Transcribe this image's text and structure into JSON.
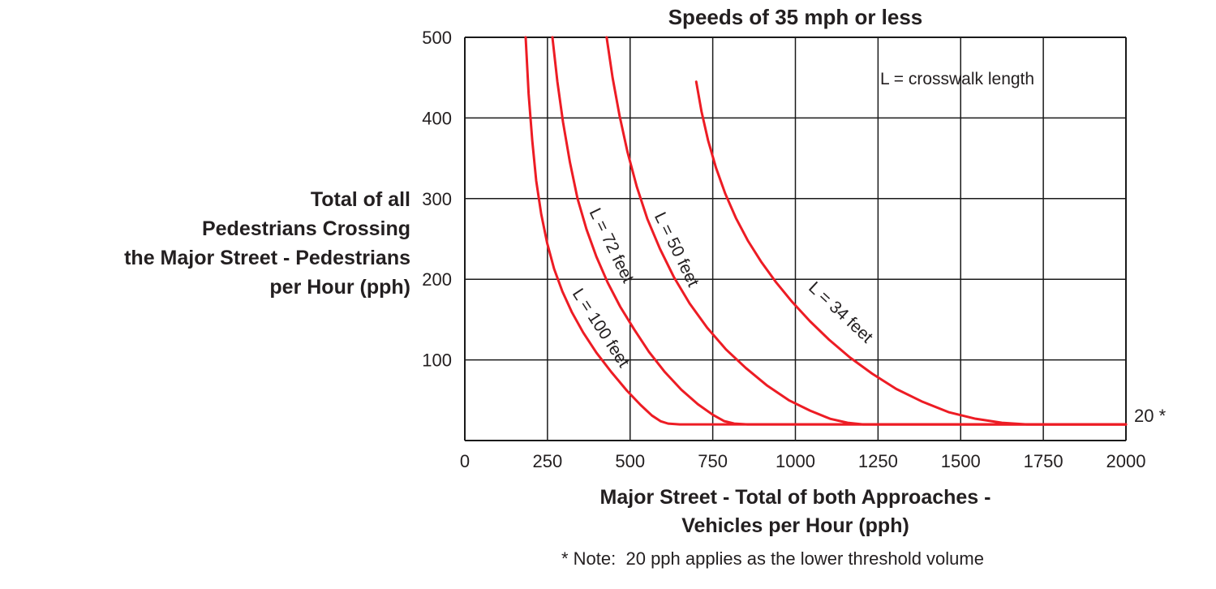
{
  "title": "Speeds of 35 mph or less",
  "legend_note": "L = crosswalk length",
  "threshold_label": "20 *",
  "footnote": "* Note:  20 pph applies as the lower threshold volume",
  "y_axis_label_lines": [
    "Total of all",
    "Pedestrians Crossing",
    "the Major Street - Pedestrians",
    "per Hour (pph)"
  ],
  "x_axis_label_lines": [
    "Major Street - Total of both Approaches -",
    "Vehicles per Hour (pph)"
  ],
  "chart_data": {
    "type": "line",
    "title": "Speeds of 35 mph or less",
    "xlabel": "Major Street - Total of both Approaches - Vehicles per Hour (pph)",
    "ylabel": "Total of all Pedestrians Crossing the Major Street - Pedestrians per Hour (pph)",
    "xlim": [
      0,
      2000
    ],
    "ylim": [
      0,
      500
    ],
    "x_ticks": [
      0,
      250,
      500,
      750,
      1000,
      1250,
      1500,
      1750,
      2000
    ],
    "y_ticks": [
      100,
      200,
      300,
      400,
      500
    ],
    "grid": true,
    "line_color": "#ed1c24",
    "axis_color": "#1a1a1a",
    "lower_threshold_pph": 20,
    "annotation": "L = crosswalk length",
    "series": [
      {
        "name": "L = 100 feet",
        "label_anchor": {
          "x": 398,
          "y": 136,
          "angle": 57
        },
        "points": [
          [
            184,
            500
          ],
          [
            193,
            430
          ],
          [
            204,
            372
          ],
          [
            216,
            322
          ],
          [
            231,
            281
          ],
          [
            249,
            245
          ],
          [
            270,
            213
          ],
          [
            295,
            185
          ],
          [
            324,
            159
          ],
          [
            358,
            134
          ],
          [
            398,
            109
          ],
          [
            443,
            85
          ],
          [
            490,
            62
          ],
          [
            532,
            44
          ],
          [
            566,
            31
          ],
          [
            592,
            24
          ],
          [
            615,
            21
          ],
          [
            650,
            20
          ],
          [
            2000,
            20
          ]
        ]
      },
      {
        "name": "L = 72 feet",
        "label_anchor": {
          "x": 429,
          "y": 239,
          "angle": 64
        },
        "points": [
          [
            265,
            500
          ],
          [
            280,
            445
          ],
          [
            297,
            395
          ],
          [
            318,
            345
          ],
          [
            341,
            300
          ],
          [
            368,
            262
          ],
          [
            398,
            228
          ],
          [
            432,
            196
          ],
          [
            470,
            166
          ],
          [
            512,
            138
          ],
          [
            557,
            110
          ],
          [
            605,
            85
          ],
          [
            655,
            63
          ],
          [
            705,
            45
          ],
          [
            750,
            32
          ],
          [
            785,
            24
          ],
          [
            815,
            21
          ],
          [
            855,
            20
          ],
          [
            2000,
            20
          ]
        ]
      },
      {
        "name": "L = 50 feet",
        "label_anchor": {
          "x": 626,
          "y": 234,
          "angle": 64
        },
        "points": [
          [
            429,
            500
          ],
          [
            447,
            450
          ],
          [
            468,
            403
          ],
          [
            492,
            358
          ],
          [
            520,
            315
          ],
          [
            552,
            275
          ],
          [
            590,
            238
          ],
          [
            632,
            203
          ],
          [
            680,
            170
          ],
          [
            733,
            140
          ],
          [
            790,
            113
          ],
          [
            850,
            90
          ],
          [
            915,
            68
          ],
          [
            980,
            50
          ],
          [
            1045,
            37
          ],
          [
            1105,
            27
          ],
          [
            1158,
            22
          ],
          [
            1205,
            20
          ],
          [
            2000,
            20
          ]
        ]
      },
      {
        "name": "L = 34 feet",
        "label_anchor": {
          "x": 1126,
          "y": 154,
          "angle": 43
        },
        "points": [
          [
            700,
            445
          ],
          [
            716,
            408
          ],
          [
            736,
            372
          ],
          [
            760,
            338
          ],
          [
            788,
            306
          ],
          [
            820,
            276
          ],
          [
            856,
            248
          ],
          [
            896,
            222
          ],
          [
            940,
            197
          ],
          [
            990,
            172
          ],
          [
            1044,
            148
          ],
          [
            1102,
            125
          ],
          [
            1165,
            103
          ],
          [
            1232,
            83
          ],
          [
            1305,
            64
          ],
          [
            1385,
            48
          ],
          [
            1465,
            35
          ],
          [
            1545,
            27
          ],
          [
            1625,
            22
          ],
          [
            1700,
            20
          ],
          [
            2000,
            20
          ]
        ]
      }
    ]
  }
}
